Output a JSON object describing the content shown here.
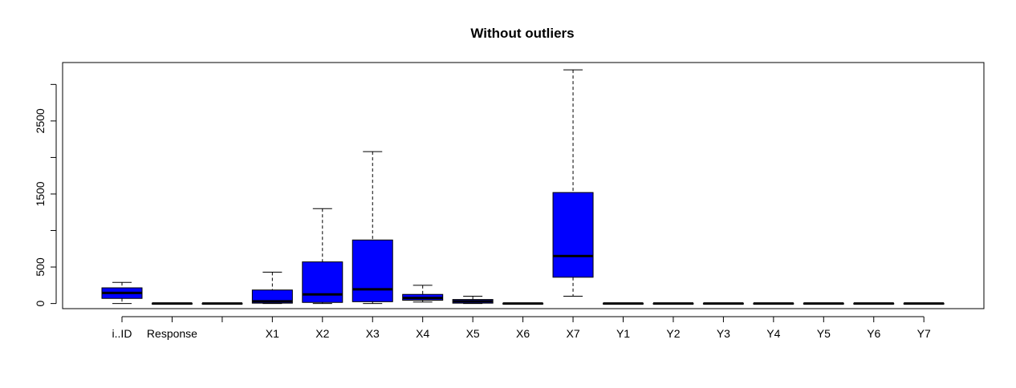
{
  "chart_data": {
    "type": "boxplot",
    "title": "Without outliers",
    "xlabel": "",
    "ylabel": "",
    "ylim": [
      -70,
      3300
    ],
    "yticks": [
      0,
      500,
      1500,
      2500
    ],
    "colors": {
      "box_fill": "#0000ff",
      "stroke": "#000000",
      "background": "#ffffff"
    },
    "boxes": [
      {
        "label": "i..ID",
        "min": 0,
        "q1": 70,
        "median": 145,
        "q3": 215,
        "max": 290
      },
      {
        "label": "Response",
        "min": 0,
        "q1": 0,
        "median": 0,
        "q3": 0,
        "max": 0
      },
      {
        "label": "",
        "min": 0,
        "q1": 0,
        "median": 0,
        "q3": 0,
        "max": 0
      },
      {
        "label": "X1",
        "min": 0,
        "q1": 5,
        "median": 30,
        "q3": 185,
        "max": 430
      },
      {
        "label": "X2",
        "min": 0,
        "q1": 15,
        "median": 125,
        "q3": 570,
        "max": 1300
      },
      {
        "label": "X3",
        "min": 0,
        "q1": 25,
        "median": 195,
        "q3": 870,
        "max": 2080
      },
      {
        "label": "X4",
        "min": 20,
        "q1": 45,
        "median": 75,
        "q3": 125,
        "max": 250
      },
      {
        "label": "X5",
        "min": 0,
        "q1": 5,
        "median": 30,
        "q3": 55,
        "max": 100
      },
      {
        "label": "X6",
        "min": 0,
        "q1": 0,
        "median": 0,
        "q3": 0,
        "max": 0
      },
      {
        "label": "X7",
        "min": 100,
        "q1": 360,
        "median": 650,
        "q3": 1520,
        "max": 3200
      },
      {
        "label": "Y1",
        "min": 0,
        "q1": 0,
        "median": 0,
        "q3": 0,
        "max": 0
      },
      {
        "label": "Y2",
        "min": 0,
        "q1": 0,
        "median": 0,
        "q3": 0,
        "max": 0
      },
      {
        "label": "Y3",
        "min": 0,
        "q1": 0,
        "median": 0,
        "q3": 0,
        "max": 0
      },
      {
        "label": "Y4",
        "min": 0,
        "q1": 0,
        "median": 0,
        "q3": 0,
        "max": 0
      },
      {
        "label": "Y5",
        "min": 0,
        "q1": 0,
        "median": 0,
        "q3": 0,
        "max": 0
      },
      {
        "label": "Y6",
        "min": 0,
        "q1": 0,
        "median": 0,
        "q3": 0,
        "max": 0
      },
      {
        "label": "Y7",
        "min": 0,
        "q1": 0,
        "median": 0,
        "q3": 0,
        "max": 0
      }
    ]
  }
}
